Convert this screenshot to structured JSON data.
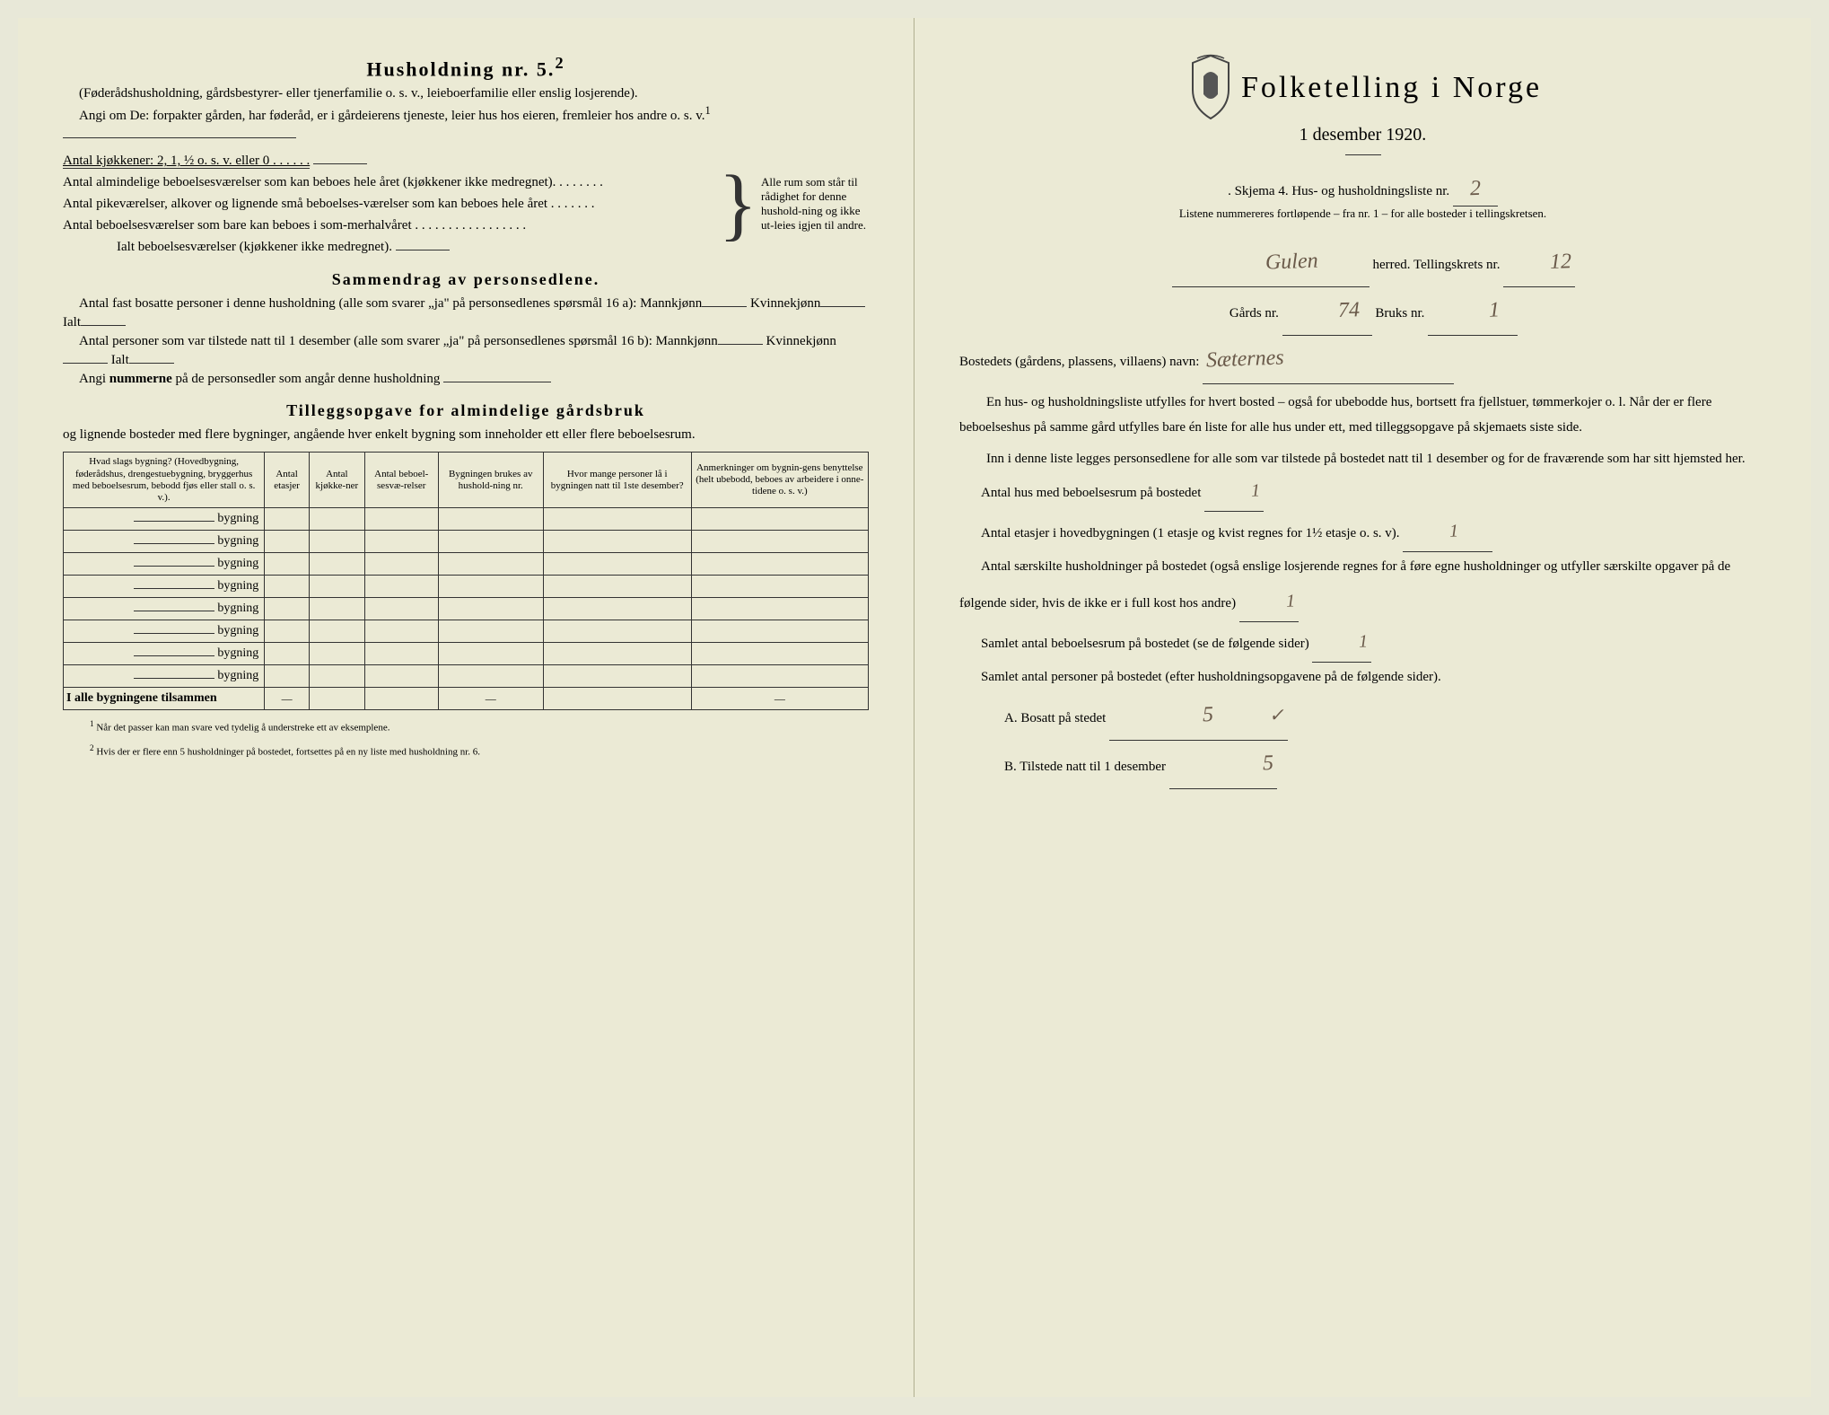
{
  "left": {
    "heading": "Husholdning nr. 5.",
    "heading_sup": "2",
    "sub1": "(Føderådshusholdning, gårdsbestyrer- eller tjenerfamilie o. s. v., leieboerfamilie eller enslig losjerende).",
    "sub2": "Angi om De:  forpakter gården, har føderåd, er i gårdeierens tjeneste, leier hus hos eieren, fremleier hos andre o. s. v.",
    "sub2_sup": "1",
    "k_line": "Antal kjøkkener: 2, 1, ½ o. s. v. eller 0 . . . . . .",
    "b1": "Antal almindelige beboelsesværelser som kan beboes hele året (kjøkkener ikke medregnet). . . . . . . .",
    "b2": "Antal pikeværelser, alkover og lignende små beboelses-værelser som kan beboes hele året . . . . . . .",
    "b3": "Antal beboelsesværelser som bare kan beboes i som-merhalvåret . . . . . . . . . . . . . . . . .",
    "b_total": "Ialt beboelsesværelser  (kjøkkener ikke medregnet).",
    "brace_text": "Alle rum som står til rådighet for denne hushold-ning og ikke ut-leies igjen til andre.",
    "sam_heading": "Sammendrag av personsedlene.",
    "sam1": "Antal fast bosatte personer i denne husholdning (alle som svarer „ja\" på personsedlenes spørsmål 16 a): Mannkjønn",
    "sam1b": " Kvinnekjønn",
    "sam1c": " Ialt",
    "sam2": "Antal personer som var tilstede natt til 1 desember (alle som svarer „ja\" på personsedlenes spørsmål 16 b): Mannkjønn",
    "sam2b": " Kvinnekjønn",
    "sam2c": " Ialt",
    "sam3a": "Angi ",
    "sam3b": "nummerne",
    "sam3c": " på de personsedler som angår denne husholdning",
    "till_heading": "Tilleggsopgave for almindelige gårdsbruk",
    "till_sub": "og lignende bosteder med flere bygninger, angående hver enkelt bygning som inneholder ett eller flere beboelsesrum.",
    "table": {
      "headers": [
        "Hvad slags bygning?\n(Hovedbygning, føderådshus, drengestuebygning, bryggerhus med beboelsesrum, bebodd fjøs eller stall o. s. v.).",
        "Antal etasjer",
        "Antal kjøkke-ner",
        "Antal beboel-sesvæ-relser",
        "Bygningen brukes av hushold-ning nr.",
        "Hvor mange personer lå i bygningen natt til 1ste desember?",
        "Anmerkninger om bygnin-gens benyttelse (helt ubebodd, beboes av arbeidere i onne-tidene o. s. v.)"
      ],
      "row_label": "bygning",
      "row_count": 8,
      "total_label": "I alle bygningene tilsammen",
      "dash": "—"
    },
    "foot1": "Når det passer kan man svare ved tydelig å understreke ett av eksemplene.",
    "foot2": "Hvis der er flere enn 5 husholdninger på bostedet, fortsettes på en ny liste med husholdning nr. 6.",
    "foot_sup1": "1",
    "foot_sup2": "2"
  },
  "right": {
    "title": "Folketelling i Norge",
    "date": "1 desember 1920.",
    "skjema": "Skjema 4.  Hus- og husholdningsliste nr.",
    "skjema_val": "2",
    "listene": "Listene nummereres fortløpende – fra nr. 1 – for alle bosteder i tellingskretsen.",
    "herred_val": "Gulen",
    "herred_lbl": " herred.   Tellingskrets nr.",
    "krets_val": "12",
    "gards_lbl": "Gårds nr.",
    "gards_val": "74",
    "bruks_lbl": "  Bruks nr.",
    "bruks_val": "1",
    "bosted_lbl": "Bostedets (gårdens, plassens, villaens) navn:",
    "bosted_val": "Sæternes",
    "para1": "En hus- og husholdningsliste utfylles for hvert bosted – også for ubebodde hus, bortsett fra fjellstuer, tømmerkojer o. l.  Når der er flere beboelseshus på samme gård utfylles bare én liste for alle hus under ett, med tilleggsopgave på skjemaets siste side.",
    "para2": "Inn i denne liste legges personsedlene for alle som var tilstede på bostedet natt til 1 desember og for de fraværende som har sitt hjemsted her.",
    "q1": "Antal hus med beboelsesrum på bostedet",
    "q1_val": "1",
    "q2a": "Antal etasjer i hovedbygningen (1 etasje og kvist regnes for 1½ etasje o. s. v).",
    "q2_val": "1",
    "q3": "Antal særskilte husholdninger på bostedet (også enslige losjerende regnes for å føre egne husholdninger og utfyller særskilte opgaver på de følgende sider, hvis de ikke er i full kost hos andre)",
    "q3_val": "1",
    "q4": "Samlet antal beboelsesrum på bostedet (se de følgende sider)",
    "q4_val": "1",
    "q5": "Samlet antal personer på bostedet (efter husholdningsopgavene på de følgende sider).",
    "qA": "A.  Bosatt på stedet",
    "qA_val": "5",
    "qA_check": "✓",
    "qB": "B.  Tilstede natt til 1 desember",
    "qB_val": "5"
  }
}
